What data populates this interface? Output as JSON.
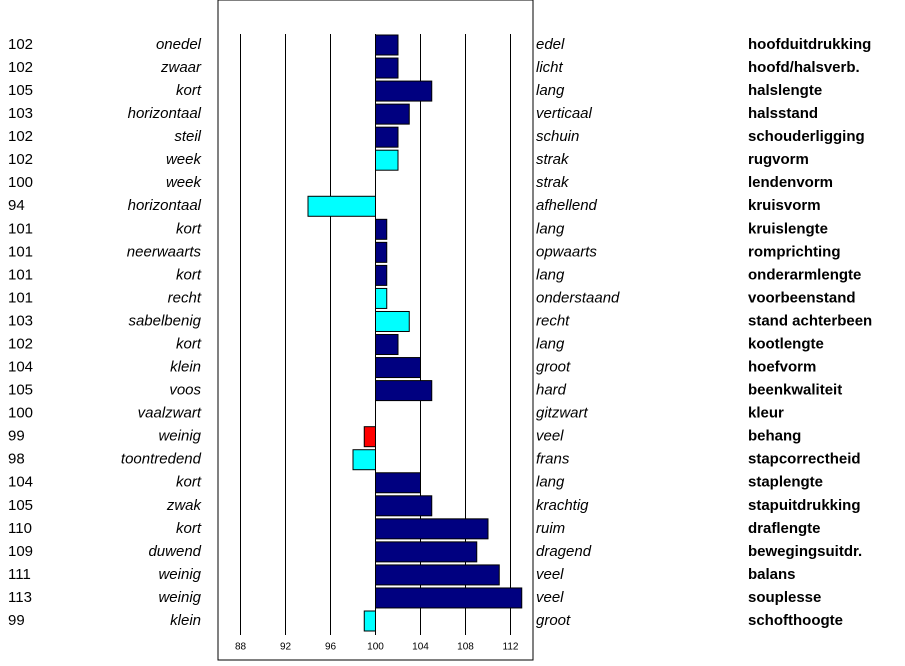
{
  "chart_data": {
    "type": "bar",
    "orientation": "horizontal",
    "categories": [
      "hoofduitdrukking",
      "hoofd/halsverb.",
      "halslengte",
      "halsstand",
      "schouderligging",
      "rugvorm",
      "lendenvorm",
      "kruisvorm",
      "kruislengte",
      "romprichting",
      "onderarmlengte",
      "voorbeenstand",
      "stand achterbeen",
      "kootlengte",
      "hoefvorm",
      "beenkwaliteit",
      "kleur",
      "behang",
      "stapcorrectheid",
      "staplengte",
      "stapuitdrukking",
      "draflengte",
      "bewegingsuitdr.",
      "balans",
      "souplesse",
      "schofthoogte"
    ],
    "left_labels": [
      "onedel",
      "zwaar",
      "kort",
      "horizontaal",
      "steil",
      "week",
      "week",
      "horizontaal",
      "kort",
      "neerwaarts",
      "kort",
      "recht",
      "sabelbenig",
      "kort",
      "klein",
      "voos",
      "vaalzwart",
      "weinig",
      "toontredend",
      "kort",
      "zwak",
      "kort",
      "duwend",
      "weinig",
      "weinig",
      "klein"
    ],
    "right_labels": [
      "edel",
      "licht",
      "lang",
      "verticaal",
      "schuin",
      "strak",
      "strak",
      "afhellend",
      "lang",
      "opwaarts",
      "lang",
      "onderstaand",
      "recht",
      "lang",
      "groot",
      "hard",
      "gitzwart",
      "veel",
      "frans",
      "lang",
      "krachtig",
      "ruim",
      "dragend",
      "veel",
      "veel",
      "groot"
    ],
    "values": [
      102,
      102,
      105,
      103,
      102,
      102,
      100,
      94,
      101,
      101,
      101,
      101,
      103,
      102,
      104,
      105,
      100,
      99,
      98,
      104,
      105,
      110,
      109,
      111,
      113,
      99
    ],
    "colors": [
      "#000080",
      "#000080",
      "#000080",
      "#000080",
      "#000080",
      "#00ffff",
      "#000080",
      "#00ffff",
      "#000080",
      "#000080",
      "#000080",
      "#00ffff",
      "#00ffff",
      "#000080",
      "#000080",
      "#000080",
      "#000080",
      "#ff0000",
      "#00ffff",
      "#000080",
      "#000080",
      "#000080",
      "#000080",
      "#000080",
      "#000080",
      "#00ffff"
    ],
    "xlim": [
      86,
      114
    ],
    "xticks": [
      88,
      92,
      96,
      100,
      104,
      108,
      112
    ],
    "base": 100,
    "grid": true
  }
}
